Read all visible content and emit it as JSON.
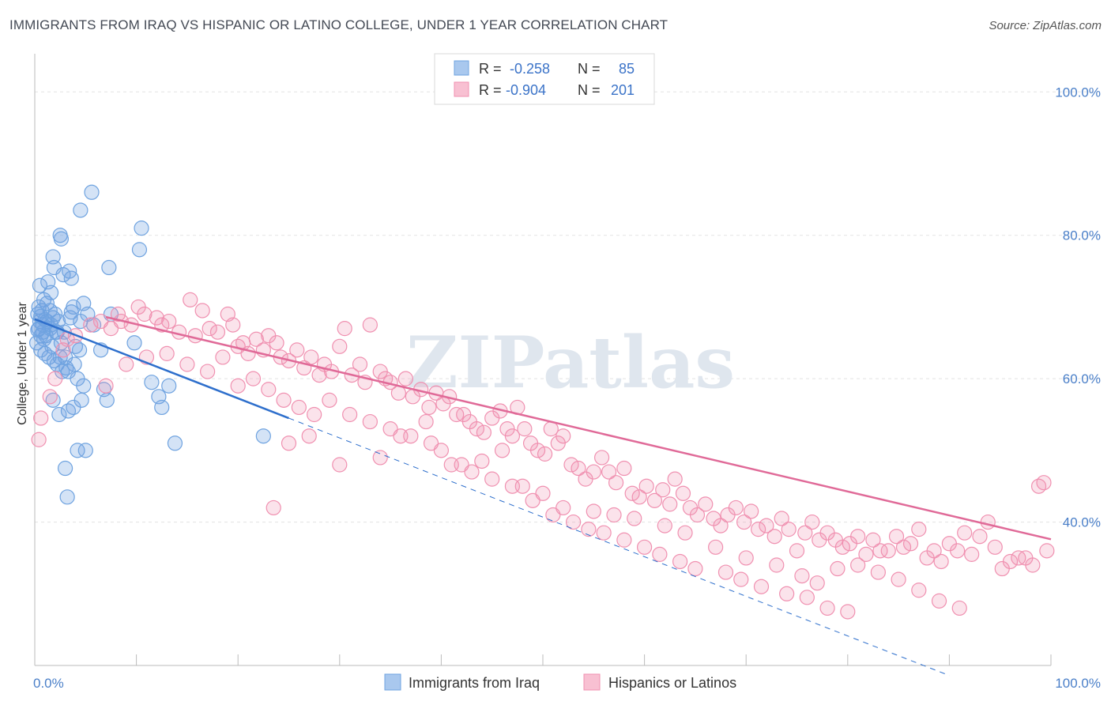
{
  "header": {
    "title": "IMMIGRANTS FROM IRAQ VS HISPANIC OR LATINO COLLEGE, UNDER 1 YEAR CORRELATION CHART",
    "source": "Source: ZipAtlas.com"
  },
  "watermark": "ZIPatlas",
  "chart_data": {
    "type": "scatter",
    "ylabel": "College, Under 1 year",
    "xlim": [
      0,
      100
    ],
    "ylim": [
      20,
      104
    ],
    "x_ticks": [
      "0.0%",
      "100.0%"
    ],
    "y_ticks": [
      {
        "value": 100,
        "label": "100.0%"
      },
      {
        "value": 80,
        "label": "80.0%"
      },
      {
        "value": 60,
        "label": "60.0%"
      },
      {
        "value": 40,
        "label": "40.0%"
      }
    ],
    "legend": {
      "placement": "top-center",
      "entries": [
        {
          "r_label": "R =",
          "r": "-0.258",
          "n_label": "N =",
          "n": "85"
        },
        {
          "r_label": "R =",
          "r": "-0.904",
          "n_label": "N =",
          "n": "201"
        }
      ]
    },
    "series": [
      {
        "name": "Immigrants from Iraq",
        "color": "#6fa3e0",
        "line_color": "#2e6fcc",
        "trend": {
          "x0": 0,
          "y0": 68.3,
          "x1": 25,
          "y1": 54.5,
          "dashed_to_x": 90,
          "dashed_to_y": 18.6
        },
        "points": [
          [
            0.3,
            69
          ],
          [
            0.5,
            68
          ],
          [
            0.4,
            67
          ],
          [
            0.6,
            66
          ],
          [
            0.2,
            65
          ],
          [
            0.8,
            67.5
          ],
          [
            1,
            68.2
          ],
          [
            0.7,
            69.5
          ],
          [
            1.2,
            68
          ],
          [
            1.5,
            67
          ],
          [
            0.5,
            73
          ],
          [
            1.3,
            73.5
          ],
          [
            1.6,
            72
          ],
          [
            0.9,
            71
          ],
          [
            2,
            69
          ],
          [
            1.8,
            68.5
          ],
          [
            1.1,
            66
          ],
          [
            0.6,
            64
          ],
          [
            1.4,
            63
          ],
          [
            2.2,
            62
          ],
          [
            1.8,
            77
          ],
          [
            2.5,
            80
          ],
          [
            2.8,
            74.5
          ],
          [
            3.4,
            75
          ],
          [
            3.6,
            74
          ],
          [
            3.8,
            70
          ],
          [
            3.5,
            68.5
          ],
          [
            4.8,
            70.5
          ],
          [
            5.2,
            69
          ],
          [
            4.5,
            68
          ],
          [
            2.1,
            66.5
          ],
          [
            2.6,
            65
          ],
          [
            3,
            63
          ],
          [
            3.1,
            61.5
          ],
          [
            3.9,
            62
          ],
          [
            4.4,
            64
          ],
          [
            4.2,
            60
          ],
          [
            4.8,
            59
          ],
          [
            3.3,
            55.5
          ],
          [
            3,
            47.5
          ],
          [
            3.2,
            43.5
          ],
          [
            4.2,
            50
          ],
          [
            5,
            50
          ],
          [
            3.8,
            56
          ],
          [
            1.8,
            57
          ],
          [
            2.4,
            55
          ],
          [
            0.8,
            66.5
          ],
          [
            1.5,
            69.5
          ],
          [
            2.3,
            68
          ],
          [
            2.9,
            66.5
          ],
          [
            5.6,
            86
          ],
          [
            4.5,
            83.5
          ],
          [
            10.5,
            81
          ],
          [
            10.3,
            78
          ],
          [
            7.3,
            75.5
          ],
          [
            2.6,
            79.5
          ],
          [
            1.9,
            75.5
          ],
          [
            6.5,
            64
          ],
          [
            9.8,
            65
          ],
          [
            5.8,
            67.5
          ],
          [
            7.5,
            69
          ],
          [
            11.5,
            59.5
          ],
          [
            12.2,
            57.5
          ],
          [
            12.5,
            56
          ],
          [
            13.2,
            59
          ],
          [
            13.8,
            51
          ],
          [
            22.5,
            52
          ],
          [
            6.8,
            58.5
          ],
          [
            7.1,
            57
          ],
          [
            4.6,
            57
          ],
          [
            0.4,
            70
          ],
          [
            0.9,
            65.5
          ],
          [
            1.7,
            64.5
          ],
          [
            2.5,
            63
          ],
          [
            3.3,
            61
          ],
          [
            1.2,
            70.5
          ],
          [
            1.6,
            67.5
          ],
          [
            2.2,
            66.5
          ],
          [
            0.3,
            66.8
          ],
          [
            0.6,
            68.7
          ],
          [
            1,
            63.5
          ],
          [
            1.9,
            62.5
          ],
          [
            2.7,
            61
          ],
          [
            4,
            64.5
          ],
          [
            3.6,
            69.3
          ]
        ]
      },
      {
        "name": "Hispanics or Latinos",
        "color": "#f090b0",
        "line_color": "#e06a98",
        "trend": {
          "x0": 7,
          "y0": 68.6,
          "x1": 100,
          "y1": 37.6
        },
        "points": [
          [
            0.6,
            54.5
          ],
          [
            0.4,
            51.5
          ],
          [
            1.5,
            57.5
          ],
          [
            2,
            60
          ],
          [
            2.8,
            64
          ],
          [
            3.2,
            65.5
          ],
          [
            4,
            66
          ],
          [
            5.5,
            67.5
          ],
          [
            6.5,
            68
          ],
          [
            7.5,
            67
          ],
          [
            8.2,
            69
          ],
          [
            8.5,
            68
          ],
          [
            9.5,
            67.5
          ],
          [
            10.2,
            70
          ],
          [
            10.8,
            69
          ],
          [
            12,
            68.5
          ],
          [
            12.5,
            67.5
          ],
          [
            13.2,
            68
          ],
          [
            14.2,
            66.5
          ],
          [
            15.3,
            71
          ],
          [
            15.8,
            66
          ],
          [
            16.5,
            69.5
          ],
          [
            17.2,
            67
          ],
          [
            18,
            66.5
          ],
          [
            19,
            69
          ],
          [
            19.5,
            67.5
          ],
          [
            20,
            64.5
          ],
          [
            20.5,
            65
          ],
          [
            21,
            63.5
          ],
          [
            21.8,
            65.5
          ],
          [
            22.5,
            64
          ],
          [
            23,
            66
          ],
          [
            23.8,
            65
          ],
          [
            24.2,
            63
          ],
          [
            25,
            62.5
          ],
          [
            25.8,
            64
          ],
          [
            26.5,
            61.5
          ],
          [
            27.2,
            63
          ],
          [
            28,
            60.5
          ],
          [
            28.5,
            62
          ],
          [
            29.2,
            61
          ],
          [
            30,
            64.5
          ],
          [
            30.5,
            67
          ],
          [
            31.2,
            60.5
          ],
          [
            32,
            62
          ],
          [
            32.5,
            59.5
          ],
          [
            33,
            67.5
          ],
          [
            34,
            61
          ],
          [
            34.5,
            60
          ],
          [
            35,
            59.5
          ],
          [
            35.8,
            58
          ],
          [
            36.5,
            60
          ],
          [
            37.2,
            57.5
          ],
          [
            38,
            58.5
          ],
          [
            38.8,
            56
          ],
          [
            39.5,
            58
          ],
          [
            40.2,
            56.5
          ],
          [
            40.8,
            57.5
          ],
          [
            41.5,
            55
          ],
          [
            42.2,
            55
          ],
          [
            42.8,
            54
          ],
          [
            43.5,
            53
          ],
          [
            44.2,
            52.5
          ],
          [
            45,
            54.5
          ],
          [
            45.8,
            55.5
          ],
          [
            46.5,
            53
          ],
          [
            47,
            52
          ],
          [
            47.5,
            56
          ],
          [
            48.2,
            53
          ],
          [
            48.8,
            51
          ],
          [
            49.5,
            50
          ],
          [
            50.2,
            49.5
          ],
          [
            50.8,
            53
          ],
          [
            51.5,
            51
          ],
          [
            52,
            52
          ],
          [
            52.8,
            48
          ],
          [
            53.5,
            47.5
          ],
          [
            54.2,
            46
          ],
          [
            55,
            47
          ],
          [
            55.8,
            49
          ],
          [
            56.5,
            47
          ],
          [
            57.2,
            45.5
          ],
          [
            58,
            47.5
          ],
          [
            58.8,
            44
          ],
          [
            59.5,
            43.5
          ],
          [
            60.2,
            45
          ],
          [
            61,
            43
          ],
          [
            61.8,
            44.5
          ],
          [
            62.5,
            42.5
          ],
          [
            63,
            46
          ],
          [
            63.8,
            44
          ],
          [
            64.5,
            42
          ],
          [
            65.2,
            41
          ],
          [
            66,
            42.5
          ],
          [
            66.8,
            40.5
          ],
          [
            67.5,
            39.5
          ],
          [
            68.2,
            41
          ],
          [
            69,
            42
          ],
          [
            69.8,
            40
          ],
          [
            70.5,
            41.5
          ],
          [
            71.2,
            39
          ],
          [
            72,
            39.5
          ],
          [
            72.8,
            38
          ],
          [
            73.5,
            40.5
          ],
          [
            74.2,
            39
          ],
          [
            75,
            36
          ],
          [
            75.8,
            38.5
          ],
          [
            76.5,
            40
          ],
          [
            77.2,
            37.5
          ],
          [
            78,
            38.5
          ],
          [
            78.8,
            37.5
          ],
          [
            79.5,
            36.5
          ],
          [
            80.2,
            37
          ],
          [
            81,
            38
          ],
          [
            81.8,
            35.5
          ],
          [
            82.5,
            37.5
          ],
          [
            83.2,
            36
          ],
          [
            84,
            36
          ],
          [
            84.8,
            38
          ],
          [
            85.5,
            36.5
          ],
          [
            86.2,
            37
          ],
          [
            87,
            39
          ],
          [
            87.8,
            35
          ],
          [
            88.5,
            36
          ],
          [
            89.2,
            34.5
          ],
          [
            90,
            37
          ],
          [
            90.8,
            36
          ],
          [
            91.5,
            38.5
          ],
          [
            92.2,
            35.5
          ],
          [
            93,
            38
          ],
          [
            93.8,
            40
          ],
          [
            94.5,
            36.5
          ],
          [
            95.2,
            33.5
          ],
          [
            96,
            34.5
          ],
          [
            96.8,
            35
          ],
          [
            97.5,
            35
          ],
          [
            98.2,
            34
          ],
          [
            98.8,
            45
          ],
          [
            99.3,
            45.5
          ],
          [
            99.6,
            36
          ],
          [
            23.5,
            42
          ],
          [
            25,
            51
          ],
          [
            27,
            52
          ],
          [
            30,
            48
          ],
          [
            34,
            49
          ],
          [
            36,
            52
          ],
          [
            39,
            51
          ],
          [
            42,
            48
          ],
          [
            44,
            48.5
          ],
          [
            46,
            50
          ],
          [
            48,
            45
          ],
          [
            50,
            44
          ],
          [
            52,
            42
          ],
          [
            55,
            41.5
          ],
          [
            57,
            41
          ],
          [
            59,
            40.5
          ],
          [
            62,
            39.5
          ],
          [
            64,
            38.5
          ],
          [
            67,
            36.5
          ],
          [
            70,
            35
          ],
          [
            73,
            34
          ],
          [
            75.5,
            32.5
          ],
          [
            77,
            31.5
          ],
          [
            79,
            33.5
          ],
          [
            81,
            34
          ],
          [
            83,
            33
          ],
          [
            85,
            32
          ],
          [
            87,
            30.5
          ],
          [
            89,
            29
          ],
          [
            91,
            28
          ],
          [
            7,
            59
          ],
          [
            9,
            62
          ],
          [
            11,
            63
          ],
          [
            13,
            63.5
          ],
          [
            15,
            62
          ],
          [
            17,
            61
          ],
          [
            18.5,
            63
          ],
          [
            20,
            59
          ],
          [
            21.5,
            60
          ],
          [
            23,
            58.5
          ],
          [
            24.5,
            57
          ],
          [
            26,
            56
          ],
          [
            27.5,
            55
          ],
          [
            29,
            57
          ],
          [
            31,
            55
          ],
          [
            33,
            54
          ],
          [
            35,
            53
          ],
          [
            37,
            52
          ],
          [
            38.5,
            54
          ],
          [
            40,
            50
          ],
          [
            41,
            48
          ],
          [
            43,
            47
          ],
          [
            45,
            46
          ],
          [
            47,
            45
          ],
          [
            49,
            43
          ],
          [
            51,
            41
          ],
          [
            53,
            40
          ],
          [
            54.5,
            39
          ],
          [
            56,
            38.5
          ],
          [
            58,
            37.5
          ],
          [
            60,
            36.5
          ],
          [
            61.5,
            35.5
          ],
          [
            63.5,
            34.5
          ],
          [
            65,
            33.5
          ],
          [
            68,
            33
          ],
          [
            69.5,
            32
          ],
          [
            71.5,
            31
          ],
          [
            74,
            30
          ],
          [
            76,
            29.5
          ],
          [
            78,
            28
          ],
          [
            80,
            27.5
          ]
        ]
      }
    ],
    "bottom_legend": [
      "Immigrants from Iraq",
      "Hispanics or Latinos"
    ]
  }
}
